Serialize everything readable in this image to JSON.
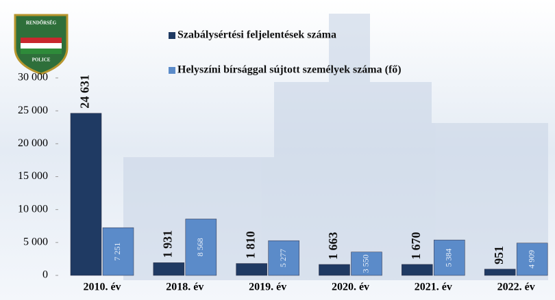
{
  "chart_data": {
    "type": "bar",
    "annotations": [
      "RENDŐRSÉG",
      "POLICE"
    ],
    "categories": [
      "2010. év",
      "2018. év",
      "2019. év",
      "2020. év",
      "2021. év",
      "2022. év"
    ],
    "series": [
      {
        "name": "Szabálysértési feljelentések száma",
        "color": "#1f3a63",
        "values": [
          24631,
          1931,
          1810,
          1663,
          1670,
          951
        ],
        "value_labels": [
          "24 631",
          "1 931",
          "1 810",
          "1 663",
          "1 670",
          "951"
        ]
      },
      {
        "name": "Helyszíni bírsággal sújtott személyek száma (fő)",
        "color": "#5b8bc9",
        "values": [
          7251,
          8568,
          5277,
          3550,
          5384,
          4909
        ],
        "value_labels": [
          "7 251",
          "8 568",
          "5 277",
          "3 550",
          "5 384",
          "4 909"
        ]
      }
    ],
    "ylim": [
      0,
      30000
    ],
    "yticks": [
      0,
      {
        "value": 5000,
        "label": "5 000"
      },
      {
        "value": 10000,
        "label": "10 000"
      },
      {
        "value": 15000,
        "label": "15 000"
      },
      {
        "value": 20000,
        "label": "20 000"
      },
      {
        "value": 25000,
        "label": "25 000"
      },
      {
        "value": 30000,
        "label": "30 000"
      }
    ],
    "grid": false,
    "legend": "top"
  }
}
